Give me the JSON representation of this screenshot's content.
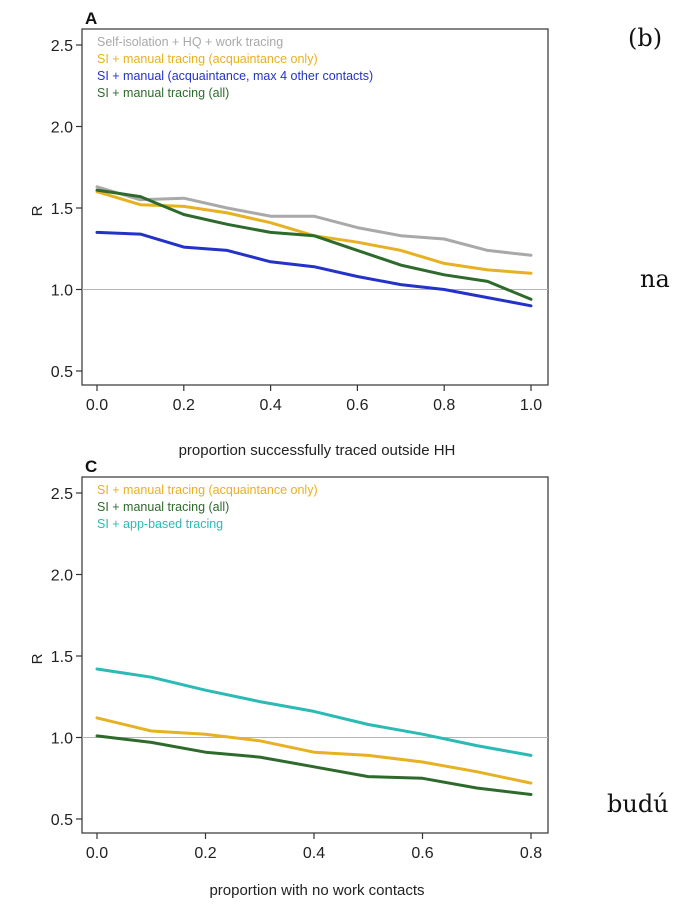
{
  "side_labels": {
    "panel_tag": "(b)",
    "word_top": "na",
    "word_bottom": "budú"
  },
  "chart_data": [
    {
      "type": "line",
      "panel_label": "A",
      "xlabel": "proportion successfully traced outside HH",
      "ylabel": "R",
      "xlim": [
        0,
        1
      ],
      "ylim": [
        0.5,
        2.5
      ],
      "x_ticks": [
        "0.0",
        "0.2",
        "0.4",
        "0.6",
        "0.8",
        "1.0"
      ],
      "y_ticks": [
        "0.5",
        "1.0",
        "1.5",
        "2.0",
        "2.5"
      ],
      "reference_line": 1.0,
      "grid": false,
      "legend_position": "top-left",
      "x": [
        0,
        0.1,
        0.2,
        0.3,
        0.4,
        0.5,
        0.6,
        0.7,
        0.8,
        0.9,
        1.0
      ],
      "series": [
        {
          "name": "Self-isolation + HQ + work tracing",
          "color": "#a9a9a9",
          "values": [
            1.63,
            1.55,
            1.56,
            1.5,
            1.45,
            1.45,
            1.38,
            1.33,
            1.31,
            1.24,
            1.21
          ]
        },
        {
          "name": "SI + manual tracing (acquaintance only)",
          "color": "#e6b122",
          "values": [
            1.6,
            1.52,
            1.51,
            1.47,
            1.41,
            1.33,
            1.29,
            1.24,
            1.16,
            1.12,
            1.1
          ]
        },
        {
          "name": "SI + manual (acquaintance, max 4 other contacts)",
          "color": "#2432c8",
          "values": [
            1.35,
            1.34,
            1.26,
            1.24,
            1.17,
            1.14,
            1.08,
            1.03,
            1.0,
            0.95,
            0.9
          ]
        },
        {
          "name": "SI + manual tracing (all)",
          "color": "#2f6a2d",
          "values": [
            1.61,
            1.57,
            1.46,
            1.4,
            1.35,
            1.33,
            1.24,
            1.15,
            1.09,
            1.05,
            0.94
          ]
        }
      ]
    },
    {
      "type": "line",
      "panel_label": "C",
      "xlabel": "proportion with no work contacts",
      "ylabel": "R",
      "xlim": [
        0,
        0.8
      ],
      "ylim": [
        0.5,
        2.5
      ],
      "x_ticks": [
        "0.0",
        "0.2",
        "0.4",
        "0.6",
        "0.8"
      ],
      "y_ticks": [
        "0.5",
        "1.0",
        "1.5",
        "2.0",
        "2.5"
      ],
      "reference_line": 1.0,
      "grid": false,
      "legend_position": "top-left",
      "x": [
        0,
        0.1,
        0.2,
        0.3,
        0.4,
        0.5,
        0.6,
        0.7,
        0.8
      ],
      "series": [
        {
          "name": "SI + manual tracing (acquaintance only)",
          "color": "#e6b122",
          "values": [
            1.12,
            1.04,
            1.02,
            0.98,
            0.91,
            0.89,
            0.85,
            0.79,
            0.72
          ]
        },
        {
          "name": "SI + manual tracing (all)",
          "color": "#2f6a2d",
          "values": [
            1.01,
            0.97,
            0.91,
            0.88,
            0.82,
            0.76,
            0.75,
            0.69,
            0.65
          ]
        },
        {
          "name": "SI + app-based tracing",
          "color": "#2bbab4",
          "values": [
            1.42,
            1.37,
            1.29,
            1.22,
            1.16,
            1.08,
            1.02,
            0.95,
            0.89
          ]
        }
      ]
    }
  ]
}
